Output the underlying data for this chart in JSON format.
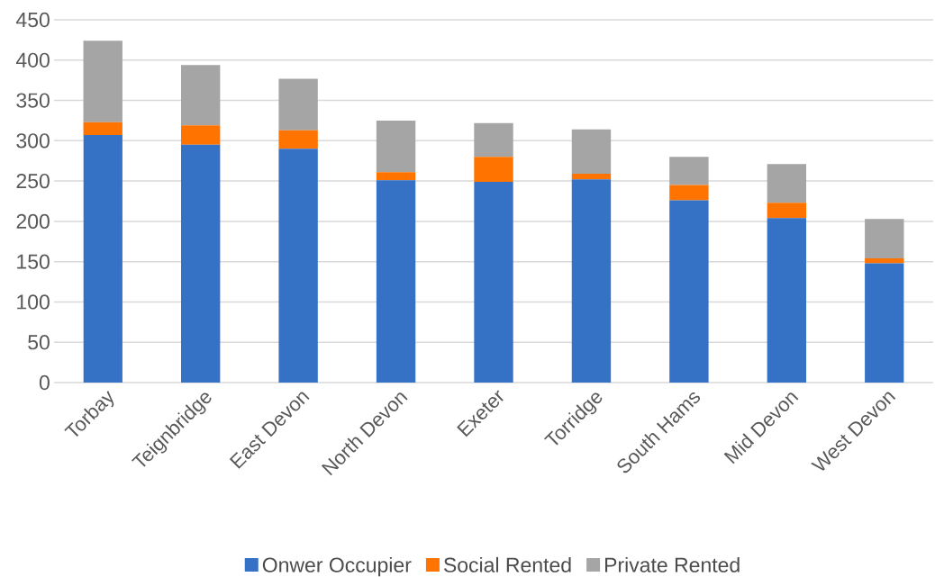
{
  "chart_data": {
    "type": "bar",
    "stacked": true,
    "categories": [
      "Torbay",
      "Teignbridge",
      "East Devon",
      "North Devon",
      "Exeter",
      "Torridge",
      "South Hams",
      "Mid Devon",
      "West Devon"
    ],
    "series": [
      {
        "name": "Onwer Occupier",
        "color": "#3572c6",
        "values": [
          307,
          295,
          290,
          251,
          249,
          252,
          226,
          204,
          148
        ]
      },
      {
        "name": "Social Rented",
        "color": "#ff7300",
        "values": [
          16,
          24,
          23,
          10,
          31,
          7,
          19,
          19,
          6
        ]
      },
      {
        "name": "Private Rented",
        "color": "#a5a5a5",
        "values": [
          101,
          75,
          64,
          64,
          42,
          55,
          35,
          48,
          49
        ]
      }
    ],
    "ylim": [
      0,
      450
    ],
    "yticks": [
      0,
      50,
      100,
      150,
      200,
      250,
      300,
      350,
      400,
      450
    ],
    "grid": "y",
    "legend": "bottom"
  }
}
